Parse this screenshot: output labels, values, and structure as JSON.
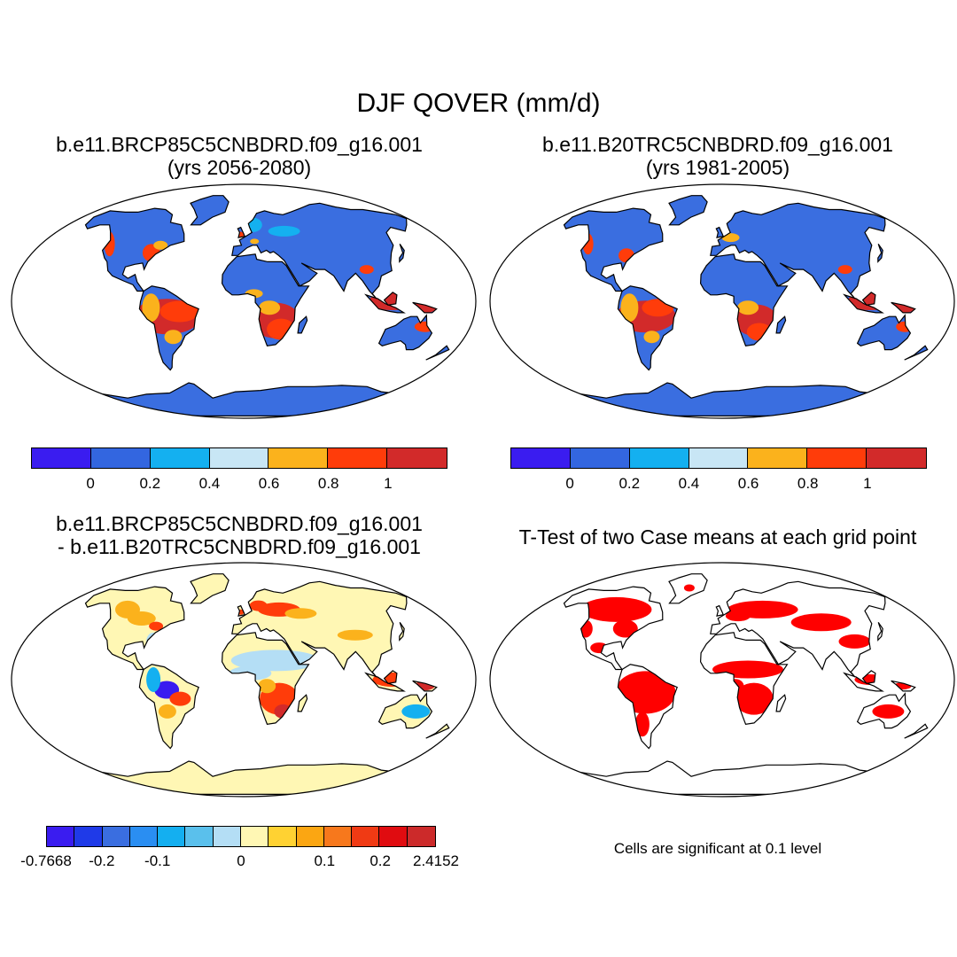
{
  "title": "DJF QOVER (mm/d)",
  "panels": {
    "future": {
      "title_line1": "b.e11.BRCP85C5CNBDRD.f09_g16.001",
      "title_line2": "(yrs 2056-2080)"
    },
    "historical": {
      "title_line1": "b.e11.B20TRC5CNBDRD.f09_g16.001",
      "title_line2": "(yrs 1981-2005)"
    },
    "difference": {
      "title_line1": "b.e11.BRCP85C5CNBDRD.f09_g16.001",
      "title_line2": "- b.e11.B20TRC5CNBDRD.f09_g16.001"
    },
    "ttest": {
      "title_line1": "T-Test of two Case means at each grid point",
      "note": "Cells are significant at 0.1 level"
    }
  },
  "colorbars": {
    "main": {
      "colors": [
        "#3a1cf0",
        "#3366e0",
        "#14b0f0",
        "#c8e6f5",
        "#fbb21c",
        "#ff3c0a",
        "#d22a2a"
      ],
      "tick_labels": [
        "0",
        "0.2",
        "0.4",
        "0.6",
        "0.8",
        "1"
      ]
    },
    "diff": {
      "colors": [
        "#3a1cf0",
        "#1f3ae8",
        "#3a6ee0",
        "#2a8ef2",
        "#14aff0",
        "#5ac0ec",
        "#b4def5",
        "#fff7b4",
        "#ffd232",
        "#fba612",
        "#f7781c",
        "#f03a14",
        "#e00c10",
        "#cc2a2a"
      ],
      "tick_labels": [
        "-0.7668",
        "-0.2",
        "-0.1",
        "0",
        "0.1",
        "0.2",
        "2.4152"
      ]
    }
  },
  "map_colors": {
    "ocean": "#ffffff",
    "base_blue": "#3a6ee0",
    "light_blue": "#14b0f0",
    "orange": "#fbb21c",
    "red": "#ff3c0a",
    "dark_red": "#d22a2a",
    "diff_base": "#fff7b4",
    "diff_light_blue": "#b4def5",
    "diff_blue": "#3a1cf0",
    "sig_red": "#ff0000"
  }
}
